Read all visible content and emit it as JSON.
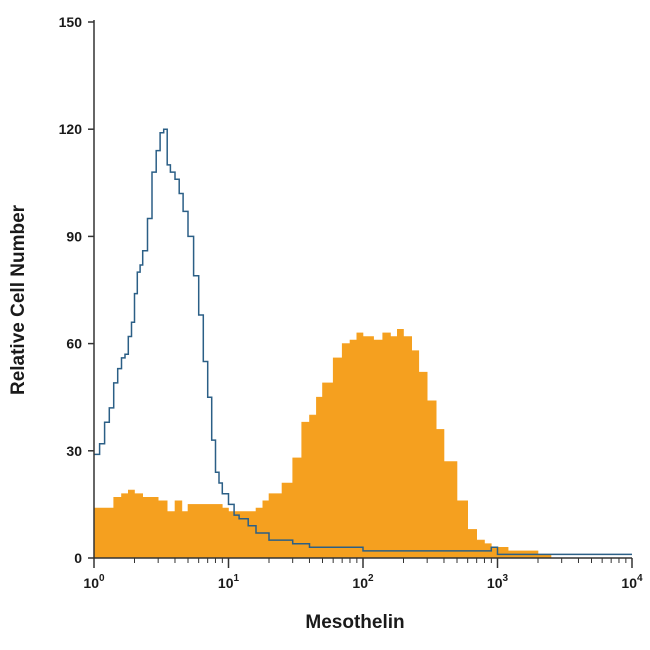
{
  "chart_data": {
    "type": "area",
    "title": "",
    "xlabel": "Mesothelin",
    "ylabel": "Relative Cell Number",
    "x_scale": "log",
    "xlim": [
      1,
      10000
    ],
    "ylim": [
      0,
      150
    ],
    "grid": false,
    "legend": "none",
    "x_ticks": [
      {
        "value": 1,
        "base": "10",
        "exp": "0"
      },
      {
        "value": 10,
        "base": "10",
        "exp": "1"
      },
      {
        "value": 100,
        "base": "10",
        "exp": "2"
      },
      {
        "value": 1000,
        "base": "10",
        "exp": "3"
      },
      {
        "value": 10000,
        "base": "10",
        "exp": "4"
      }
    ],
    "y_ticks": [
      {
        "value": 0,
        "label": "0"
      },
      {
        "value": 30,
        "label": "30"
      },
      {
        "value": 60,
        "label": "60"
      },
      {
        "value": 90,
        "label": "90"
      },
      {
        "value": 120,
        "label": "120"
      },
      {
        "value": 150,
        "label": "150"
      }
    ],
    "series": [
      {
        "style": "filled",
        "color": "#f5a01f",
        "points": [
          [
            1,
            14
          ],
          [
            1.2,
            14
          ],
          [
            1.4,
            17
          ],
          [
            1.6,
            18
          ],
          [
            1.8,
            19
          ],
          [
            2,
            18
          ],
          [
            2.3,
            17
          ],
          [
            2.6,
            17
          ],
          [
            3,
            16
          ],
          [
            3.5,
            13
          ],
          [
            4,
            16
          ],
          [
            4.5,
            13
          ],
          [
            5,
            15
          ],
          [
            6,
            15
          ],
          [
            7,
            15
          ],
          [
            8,
            15
          ],
          [
            9,
            14
          ],
          [
            10,
            13
          ],
          [
            12,
            13
          ],
          [
            14,
            13
          ],
          [
            16,
            14
          ],
          [
            18,
            16
          ],
          [
            20,
            18
          ],
          [
            25,
            21
          ],
          [
            30,
            28
          ],
          [
            35,
            38
          ],
          [
            40,
            40
          ],
          [
            45,
            45
          ],
          [
            50,
            49
          ],
          [
            60,
            56
          ],
          [
            70,
            60
          ],
          [
            80,
            61
          ],
          [
            90,
            63
          ],
          [
            100,
            62
          ],
          [
            120,
            61
          ],
          [
            140,
            63
          ],
          [
            160,
            62
          ],
          [
            180,
            64
          ],
          [
            200,
            62
          ],
          [
            230,
            58
          ],
          [
            260,
            52
          ],
          [
            300,
            44
          ],
          [
            350,
            36
          ],
          [
            400,
            27
          ],
          [
            500,
            16
          ],
          [
            600,
            8
          ],
          [
            700,
            5
          ],
          [
            800,
            4
          ],
          [
            900,
            3
          ],
          [
            1000,
            3
          ],
          [
            1200,
            2
          ],
          [
            1500,
            2
          ],
          [
            2000,
            1
          ],
          [
            2300,
            1
          ],
          [
            2500,
            0
          ]
        ]
      },
      {
        "style": "line",
        "color": "#2b5f86",
        "points": [
          [
            1,
            29
          ],
          [
            1.1,
            32
          ],
          [
            1.2,
            38
          ],
          [
            1.3,
            42
          ],
          [
            1.4,
            49
          ],
          [
            1.5,
            53
          ],
          [
            1.6,
            56
          ],
          [
            1.7,
            57
          ],
          [
            1.8,
            62
          ],
          [
            1.9,
            66
          ],
          [
            2,
            74
          ],
          [
            2.1,
            80
          ],
          [
            2.2,
            82
          ],
          [
            2.3,
            86
          ],
          [
            2.5,
            95
          ],
          [
            2.7,
            108
          ],
          [
            2.9,
            114
          ],
          [
            3.1,
            119
          ],
          [
            3.3,
            120
          ],
          [
            3.5,
            110
          ],
          [
            3.7,
            108
          ],
          [
            4,
            106
          ],
          [
            4.3,
            102
          ],
          [
            4.6,
            97
          ],
          [
            5,
            90
          ],
          [
            5.5,
            79
          ],
          [
            6,
            68
          ],
          [
            6.5,
            55
          ],
          [
            7,
            45
          ],
          [
            7.5,
            33
          ],
          [
            8,
            24
          ],
          [
            8.5,
            21
          ],
          [
            9,
            18
          ],
          [
            10,
            15
          ],
          [
            11,
            12
          ],
          [
            12,
            11
          ],
          [
            14,
            9
          ],
          [
            16,
            7
          ],
          [
            20,
            5
          ],
          [
            25,
            5
          ],
          [
            30,
            4
          ],
          [
            40,
            3
          ],
          [
            50,
            3
          ],
          [
            70,
            3
          ],
          [
            100,
            2
          ],
          [
            150,
            2
          ],
          [
            200,
            2
          ],
          [
            300,
            2
          ],
          [
            400,
            2
          ],
          [
            500,
            2
          ],
          [
            700,
            2
          ],
          [
            900,
            3
          ],
          [
            1000,
            1
          ],
          [
            1500,
            1
          ],
          [
            2000,
            1
          ],
          [
            3000,
            1
          ],
          [
            5000,
            1
          ],
          [
            7000,
            1
          ],
          [
            10000,
            1
          ]
        ]
      }
    ]
  }
}
